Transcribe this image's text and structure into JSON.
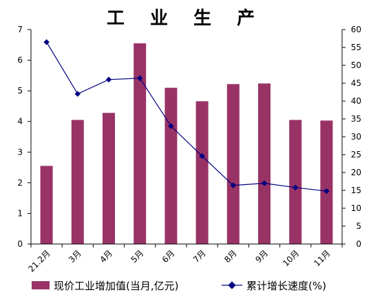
{
  "chart_data": {
    "type": "bar",
    "title": "工 业 生 产",
    "categories": [
      "21.2月",
      "3月",
      "4月",
      "5月",
      "6月",
      "7月",
      "8月",
      "9月",
      "10月",
      "11月"
    ],
    "series": [
      {
        "name": "现价工业增加值(当月,亿元)",
        "type": "bar",
        "axis": "left",
        "color": "#993366",
        "values": [
          2.55,
          4.05,
          4.28,
          6.55,
          5.1,
          4.66,
          5.22,
          5.24,
          4.05,
          4.03
        ]
      },
      {
        "name": "累计增长速度(%)",
        "type": "line",
        "axis": "right",
        "color": "#000080",
        "values": [
          56.5,
          42,
          46,
          46.4,
          33,
          24.6,
          16.4,
          17,
          15.8,
          14.8
        ]
      }
    ],
    "ylim_left": [
      0,
      7
    ],
    "yticks_left": [
      0,
      1,
      2,
      3,
      4,
      5,
      6,
      7
    ],
    "ylim_right": [
      0,
      60
    ],
    "yticks_right": [
      0,
      5,
      10,
      15,
      20,
      25,
      30,
      35,
      40,
      45,
      50,
      55,
      60
    ],
    "grid": false,
    "legend_position": "bottom"
  }
}
